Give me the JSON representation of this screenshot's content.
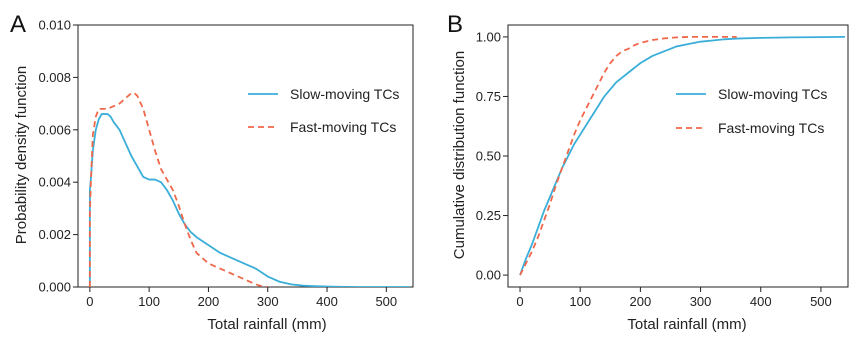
{
  "chart_data": [
    {
      "panel_label": "A",
      "type": "line",
      "xlabel": "Total rainfall (mm)",
      "ylabel": "Probability density function",
      "xlim": [
        -20,
        545
      ],
      "ylim": [
        0,
        0.01
      ],
      "xticks": [
        0,
        100,
        200,
        300,
        400,
        500
      ],
      "yticks": [
        0.0,
        0.002,
        0.004,
        0.006,
        0.008,
        0.01
      ],
      "ytick_labels": [
        "0.000",
        "0.002",
        "0.004",
        "0.006",
        "0.008",
        "0.010"
      ],
      "legend_position": "right-middle",
      "series": [
        {
          "name": "Slow-moving TCs",
          "color": "#3aaed8",
          "style": "solid",
          "x": [
            0,
            0,
            2,
            5,
            10,
            15,
            20,
            25,
            30,
            35,
            40,
            50,
            60,
            70,
            80,
            90,
            100,
            110,
            120,
            130,
            140,
            150,
            160,
            170,
            180,
            200,
            220,
            240,
            260,
            280,
            300,
            320,
            340,
            360,
            380,
            400,
            420,
            450,
            500,
            540
          ],
          "y": [
            0.0,
            0.0037,
            0.0042,
            0.0052,
            0.006,
            0.0064,
            0.0066,
            0.0066,
            0.0066,
            0.0065,
            0.0063,
            0.006,
            0.0055,
            0.005,
            0.0046,
            0.0042,
            0.0041,
            0.0041,
            0.004,
            0.0037,
            0.0033,
            0.0028,
            0.0024,
            0.0021,
            0.0019,
            0.0016,
            0.0013,
            0.0011,
            0.0009,
            0.0007,
            0.0004,
            0.0002,
            0.0001,
            5e-05,
            3e-05,
            2e-05,
            1e-05,
            0.0,
            0.0,
            0.0
          ]
        },
        {
          "name": "Fast-moving TCs",
          "color": "#f0684b",
          "style": "dashed",
          "x": [
            0,
            0,
            2,
            5,
            10,
            15,
            20,
            30,
            40,
            50,
            60,
            70,
            75,
            80,
            90,
            100,
            110,
            120,
            130,
            140,
            150,
            160,
            170,
            180,
            190,
            200,
            220,
            240,
            260,
            280,
            290,
            300
          ],
          "y": [
            0.0,
            0.0028,
            0.0042,
            0.0058,
            0.0065,
            0.0068,
            0.0068,
            0.0068,
            0.0069,
            0.007,
            0.0072,
            0.0074,
            0.0074,
            0.0073,
            0.0068,
            0.006,
            0.0052,
            0.0045,
            0.0041,
            0.0037,
            0.0031,
            0.0024,
            0.0018,
            0.0013,
            0.0011,
            0.0009,
            0.0007,
            0.0005,
            0.0003,
            0.0001,
            3e-05,
            0.0
          ]
        }
      ]
    },
    {
      "panel_label": "B",
      "type": "line",
      "xlabel": "Total rainfall (mm)",
      "ylabel": "Cumulative distribution function",
      "xlim": [
        -20,
        545
      ],
      "ylim": [
        -0.05,
        1.05
      ],
      "xticks": [
        0,
        100,
        200,
        300,
        400,
        500
      ],
      "yticks": [
        0.0,
        0.25,
        0.5,
        0.75,
        1.0
      ],
      "ytick_labels": [
        "0.00",
        "0.25",
        "0.50",
        "0.75",
        "1.00"
      ],
      "legend_position": "right-middle",
      "series": [
        {
          "name": "Slow-moving TCs",
          "color": "#3aaed8",
          "style": "solid",
          "x": [
            0,
            10,
            20,
            30,
            40,
            50,
            60,
            70,
            80,
            90,
            100,
            110,
            120,
            130,
            140,
            150,
            160,
            170,
            180,
            200,
            220,
            240,
            260,
            280,
            300,
            320,
            340,
            360,
            400,
            450,
            500,
            540
          ],
          "y": [
            0.0,
            0.07,
            0.13,
            0.2,
            0.27,
            0.33,
            0.39,
            0.45,
            0.5,
            0.55,
            0.59,
            0.63,
            0.67,
            0.71,
            0.75,
            0.78,
            0.81,
            0.83,
            0.85,
            0.89,
            0.92,
            0.94,
            0.96,
            0.97,
            0.98,
            0.985,
            0.99,
            0.993,
            0.996,
            0.998,
            0.999,
            1.0
          ]
        },
        {
          "name": "Fast-moving TCs",
          "color": "#f0684b",
          "style": "dashed",
          "x": [
            0,
            10,
            20,
            30,
            40,
            50,
            60,
            70,
            80,
            90,
            100,
            110,
            120,
            130,
            140,
            150,
            160,
            170,
            180,
            190,
            200,
            220,
            240,
            260,
            280,
            300,
            330,
            360
          ],
          "y": [
            0.0,
            0.05,
            0.1,
            0.16,
            0.23,
            0.3,
            0.38,
            0.45,
            0.52,
            0.59,
            0.65,
            0.7,
            0.75,
            0.8,
            0.85,
            0.89,
            0.92,
            0.94,
            0.95,
            0.965,
            0.975,
            0.987,
            0.994,
            0.998,
            1.0,
            1.0,
            1.0,
            1.0
          ]
        }
      ]
    }
  ]
}
